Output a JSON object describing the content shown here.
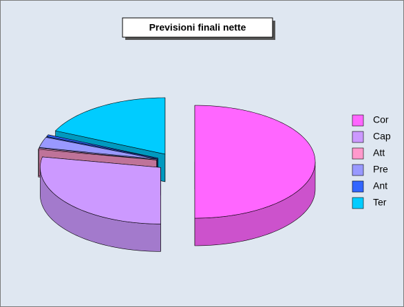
{
  "chart_data": {
    "type": "pie",
    "title": "Previsioni finali nette",
    "categories": [
      "Cor",
      "Cap",
      "Att",
      "Pre",
      "Ant",
      "Ter"
    ],
    "values": [
      50,
      28,
      0.3,
      3,
      0.5,
      18.2
    ],
    "colors": [
      "#ff66ff",
      "#cc99ff",
      "#ff99cc",
      "#9999ff",
      "#3366ff",
      "#00ccff"
    ],
    "legend": "right",
    "three_d": true,
    "exploded": true
  }
}
